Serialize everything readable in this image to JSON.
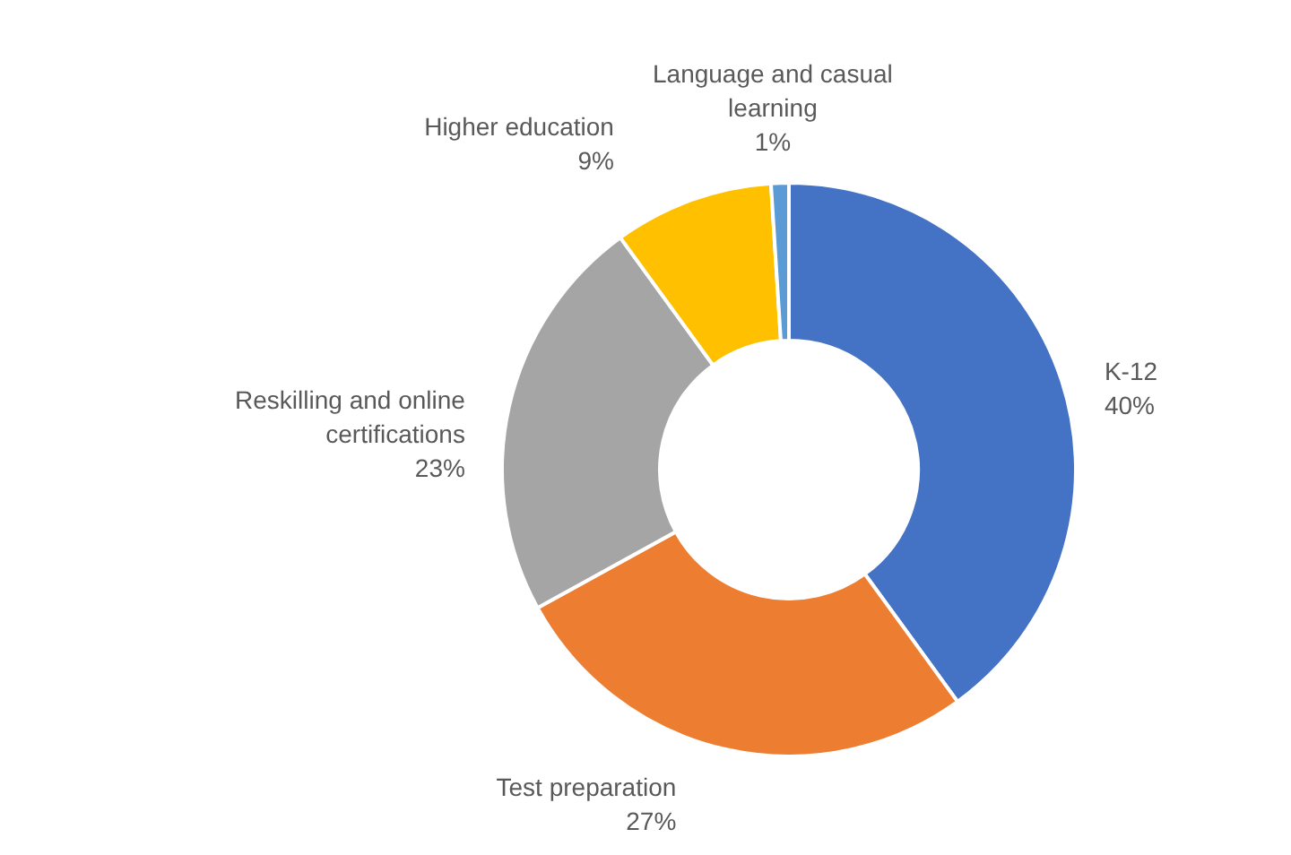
{
  "chart_data": {
    "type": "donut",
    "categories": [
      "K-12",
      "Test preparation",
      "Reskilling and online certifications",
      "Higher education",
      "Language and casual learning"
    ],
    "values": [
      40,
      27,
      23,
      9,
      1
    ],
    "value_labels": [
      "40%",
      "27%",
      "23%",
      "9%",
      "1%"
    ],
    "colors": [
      "#4472c4",
      "#ed7d31",
      "#a5a5a5",
      "#ffc000",
      "#5b9bd5"
    ]
  }
}
